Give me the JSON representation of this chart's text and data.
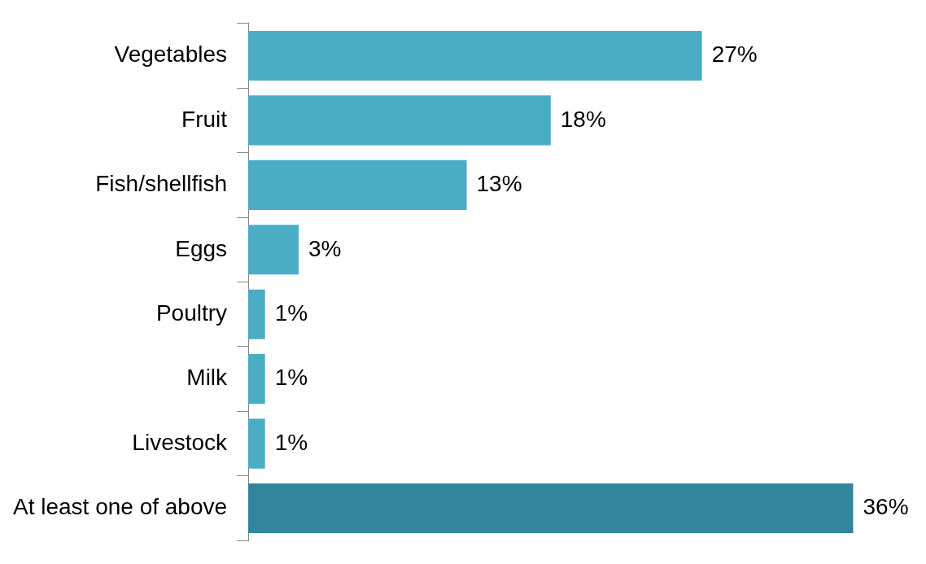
{
  "chart_data": {
    "type": "bar",
    "orientation": "horizontal",
    "categories": [
      "Vegetables",
      "Fruit",
      "Fish/shellfish",
      "Eggs",
      "Poultry",
      "Milk",
      "Livestock",
      "At least one of above"
    ],
    "values": [
      27,
      18,
      13,
      3,
      1,
      1,
      1,
      36
    ],
    "colors": [
      "#4bacc6",
      "#4bacc6",
      "#4bacc6",
      "#4bacc6",
      "#4bacc6",
      "#4bacc6",
      "#4bacc6",
      "#31859c"
    ],
    "value_labels": [
      "27%",
      "18%",
      "13%",
      "3%",
      "1%",
      "1%",
      "1%",
      "36%"
    ],
    "legend": false
  }
}
